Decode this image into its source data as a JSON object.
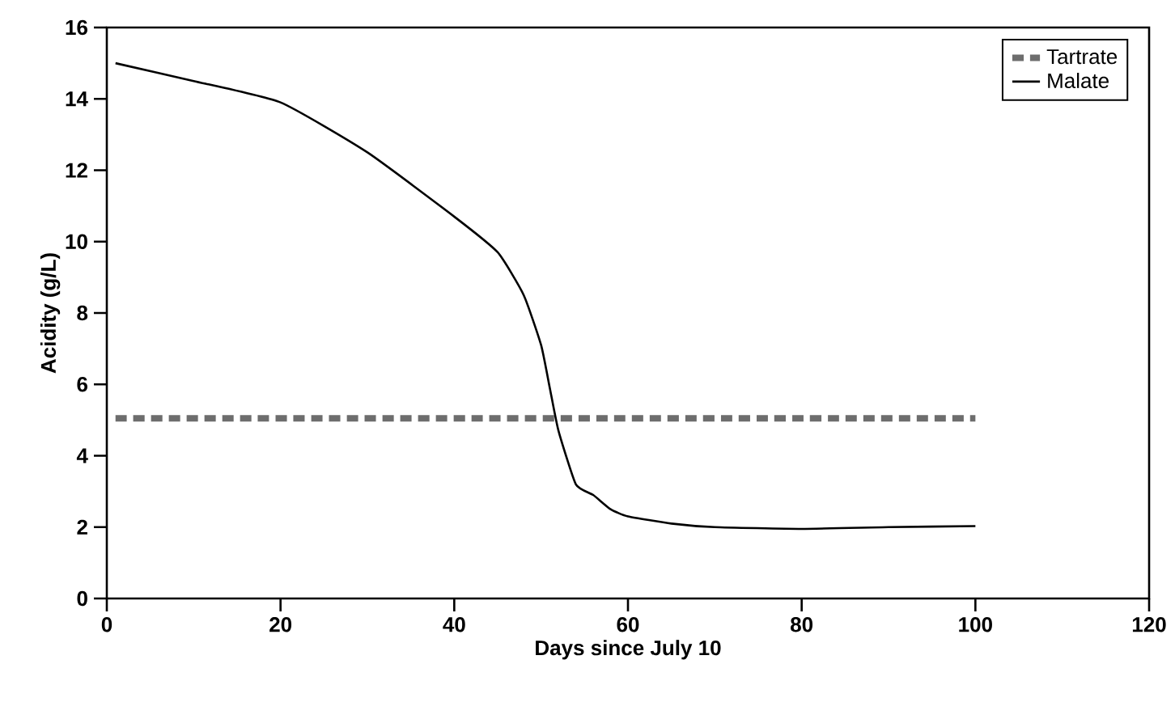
{
  "chart_data": {
    "type": "line",
    "xlabel": "Days since July 10",
    "ylabel": "Acidity (g/L)",
    "xlim": [
      0,
      120
    ],
    "ylim": [
      0,
      16
    ],
    "xticks": [
      0,
      20,
      40,
      60,
      80,
      100,
      120
    ],
    "yticks": [
      0,
      2,
      4,
      6,
      8,
      10,
      12,
      14,
      16
    ],
    "legend": "top right",
    "marker": "none",
    "series": [
      {
        "name": "Tartrate",
        "color": "#6d6d6d",
        "line_style": "dashed",
        "x": [
          1,
          100
        ],
        "values": [
          5.05,
          5.05
        ]
      },
      {
        "name": "Malate",
        "color": "#000000",
        "line_style": "solid",
        "x": [
          1,
          10,
          20,
          30,
          40,
          45,
          48,
          50,
          51,
          52,
          54,
          56,
          58,
          60,
          65,
          70,
          80,
          90,
          100
        ],
        "values": [
          15.0,
          14.5,
          13.9,
          12.5,
          10.7,
          9.7,
          8.5,
          7.1,
          5.9,
          4.7,
          3.2,
          2.9,
          2.5,
          2.3,
          2.1,
          2.0,
          1.95,
          2.0,
          2.03
        ]
      }
    ]
  }
}
